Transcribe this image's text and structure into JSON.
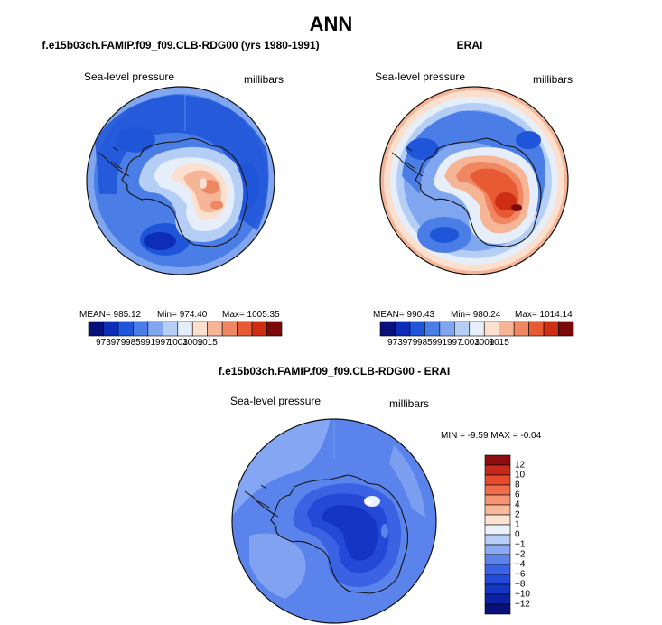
{
  "main_title": "ANN",
  "colors": {
    "model_scale": [
      "#08107a",
      "#0d2db8",
      "#1f55d8",
      "#4a7ee6",
      "#7fa6ef",
      "#b4cef6",
      "#e6eef9",
      "#fbe0cf",
      "#f6b596",
      "#ef8762",
      "#e85a34",
      "#cd2e14",
      "#7a0a0a"
    ],
    "diff_scale": [
      "#08107a",
      "#0c22a6",
      "#1535c4",
      "#2449d6",
      "#3a62e2",
      "#5b83ec",
      "#8aaaf3",
      "#b8cef8",
      "#eaf1fb",
      "#fde3d4",
      "#f8b99d",
      "#f49473",
      "#ef6d4c",
      "#e54a2c",
      "#c8281a",
      "#8b0d0d"
    ],
    "coast": "#111111"
  },
  "chart_data": [
    {
      "type": "heatmap",
      "title": "f.e15b03ch.FAMIP.f09_f09.CLB-RDG00 (yrs 1980-1991)",
      "variable": "Sea-level pressure",
      "units": "millibars",
      "stats": {
        "mean": "MEAN= 985.12",
        "min": "Min= 974.40",
        "max": "Max= 1005.35"
      },
      "colorbar": {
        "orientation": "horizontal",
        "levels": [
          "973",
          "979",
          "985",
          "991",
          "997",
          "1003",
          "1009",
          "1015"
        ]
      }
    },
    {
      "type": "heatmap",
      "title": "ERAI",
      "variable": "Sea-level pressure",
      "units": "millibars",
      "stats": {
        "mean": "MEAN= 990.43",
        "min": "Min= 980.24",
        "max": "Max= 1014.14"
      },
      "colorbar": {
        "orientation": "horizontal",
        "levels": [
          "973",
          "979",
          "985",
          "991",
          "997",
          "1003",
          "1009",
          "1015"
        ]
      }
    },
    {
      "type": "heatmap",
      "title": "f.e15b03ch.FAMIP.f09_f09.CLB-RDG00 - ERAI",
      "variable": "Sea-level pressure",
      "units": "millibars",
      "stats": {
        "min_max": "MIN =  -9.59  MAX =  -0.04"
      },
      "colorbar": {
        "orientation": "vertical",
        "levels": [
          "12",
          "10",
          "8",
          "6",
          "4",
          "2",
          "1",
          "0",
          "−1",
          "−2",
          "−4",
          "−6",
          "−8",
          "−10",
          "−12"
        ]
      }
    }
  ]
}
